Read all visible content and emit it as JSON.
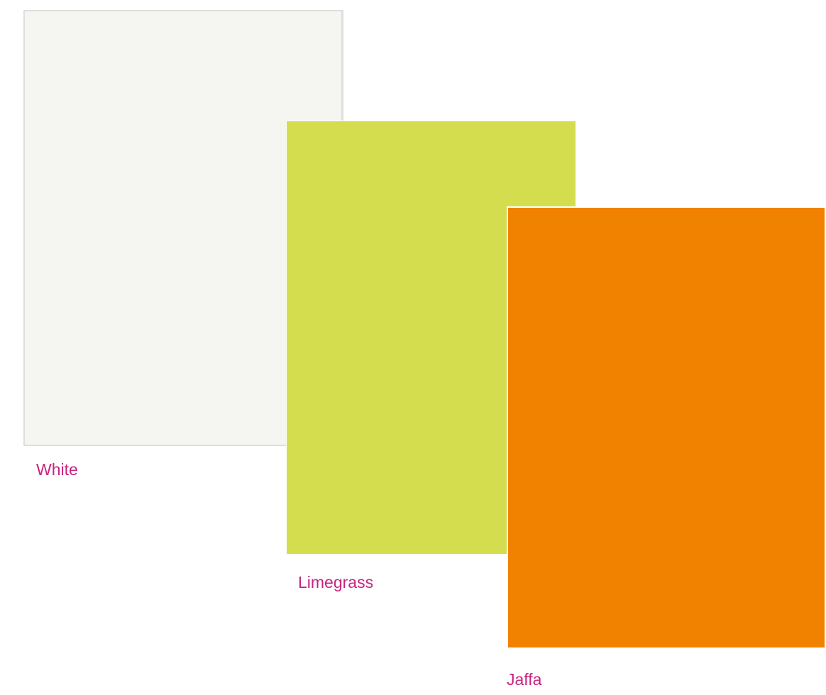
{
  "label_color": "#c8237f",
  "swatches": [
    {
      "name": "White",
      "color": "#f5f6f1"
    },
    {
      "name": "Limegrass",
      "color": "#d4dd4e"
    },
    {
      "name": "Jaffa",
      "color": "#f18200"
    }
  ]
}
